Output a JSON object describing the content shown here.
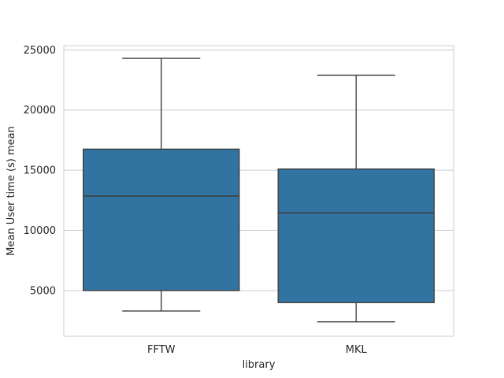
{
  "chart_data": {
    "type": "box",
    "title": "",
    "xlabel": "library",
    "ylabel": "Mean User time (s) mean",
    "categories": [
      "FFTW",
      "MKL"
    ],
    "boxes": [
      {
        "name": "FFTW",
        "whisker_low": 3300,
        "q1": 5000,
        "median": 12850,
        "q3": 16750,
        "whisker_high": 24300
      },
      {
        "name": "MKL",
        "whisker_low": 2400,
        "q1": 4000,
        "median": 11450,
        "q3": 15100,
        "whisker_high": 22900
      }
    ],
    "ylim": [
      1200,
      25350
    ],
    "yticks": [
      5000,
      10000,
      15000,
      20000,
      25000
    ],
    "grid": true,
    "colors": {
      "box_fill": "#3274a1",
      "box_line": "#3d3d3d",
      "grid": "#cccccc",
      "frame": "#cccccc"
    }
  }
}
